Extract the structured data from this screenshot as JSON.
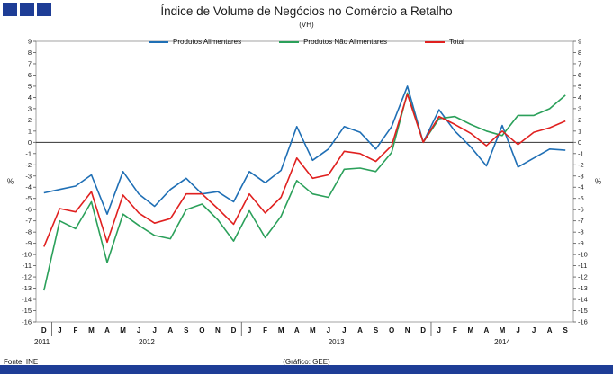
{
  "title": "Índice de Volume de Negócios no Comércio a Retalho",
  "subtitle": "(VH)",
  "footer": {
    "source": "Fonte: INE",
    "credit": "(Gráfico: GEE)"
  },
  "colors": {
    "brand_blue": "#1E3D96",
    "alimentares": "#1F6FB5",
    "nao_alimentares": "#2BA05A",
    "total": "#E0201F"
  },
  "chart_data": {
    "type": "line",
    "title": "Índice de Volume de Negócios no Comércio a Retalho",
    "subtitle": "(VH)",
    "xlabel": "",
    "ylabel": "%",
    "ylabel_right": "%",
    "ylim": [
      -16,
      9
    ],
    "ytick_step": 1,
    "zero_line": true,
    "grid": false,
    "legend_position": "top",
    "categories": [
      "D",
      "J",
      "F",
      "M",
      "A",
      "M",
      "J",
      "J",
      "A",
      "S",
      "O",
      "N",
      "D",
      "J",
      "F",
      "M",
      "A",
      "M",
      "J",
      "J",
      "A",
      "S",
      "O",
      "N",
      "D",
      "J",
      "F",
      "M",
      "A",
      "M",
      "J",
      "J",
      "A",
      "S"
    ],
    "year_groups": [
      {
        "label": "2011",
        "start": 0,
        "end": 0
      },
      {
        "label": "2012",
        "start": 1,
        "end": 12
      },
      {
        "label": "2013",
        "start": 13,
        "end": 24
      },
      {
        "label": "2014",
        "start": 25,
        "end": 33
      }
    ],
    "series": [
      {
        "name": "Produtos Alimentares",
        "color": "#1F6FB5",
        "values": [
          -4.5,
          -4.2,
          -3.9,
          -2.9,
          -6.4,
          -2.6,
          -4.6,
          -5.7,
          -4.2,
          -3.2,
          -4.6,
          -4.4,
          -5.3,
          -2.6,
          -3.6,
          -2.5,
          1.4,
          -1.6,
          -0.6,
          1.4,
          0.9,
          -0.6,
          1.4,
          5.0,
          0.0,
          2.9,
          1.0,
          -0.4,
          -2.1,
          1.5,
          -2.2,
          -1.4,
          -0.6,
          -0.7
        ]
      },
      {
        "name": "Produtos Não Alimentares",
        "color": "#2BA05A",
        "values": [
          -13.2,
          -7.0,
          -7.7,
          -5.3,
          -10.7,
          -6.4,
          -7.4,
          -8.3,
          -8.6,
          -6.0,
          -5.5,
          -6.9,
          -8.8,
          -6.1,
          -8.5,
          -6.6,
          -3.4,
          -4.6,
          -4.9,
          -2.4,
          -2.3,
          -2.6,
          -0.9,
          4.4,
          0.0,
          2.1,
          2.3,
          1.6,
          1.0,
          0.6,
          2.4,
          2.4,
          3.0,
          4.2
        ]
      },
      {
        "name": "Total",
        "color": "#E0201F",
        "values": [
          -9.3,
          -5.9,
          -6.2,
          -4.4,
          -8.9,
          -4.7,
          -6.3,
          -7.2,
          -6.8,
          -4.6,
          -4.6,
          -5.9,
          -7.3,
          -4.6,
          -6.3,
          -4.9,
          -1.4,
          -3.2,
          -2.9,
          -0.8,
          -1.0,
          -1.7,
          -0.3,
          4.3,
          0.0,
          2.3,
          1.6,
          0.8,
          -0.3,
          1.0,
          -0.2,
          0.9,
          1.3,
          1.9
        ]
      }
    ]
  }
}
